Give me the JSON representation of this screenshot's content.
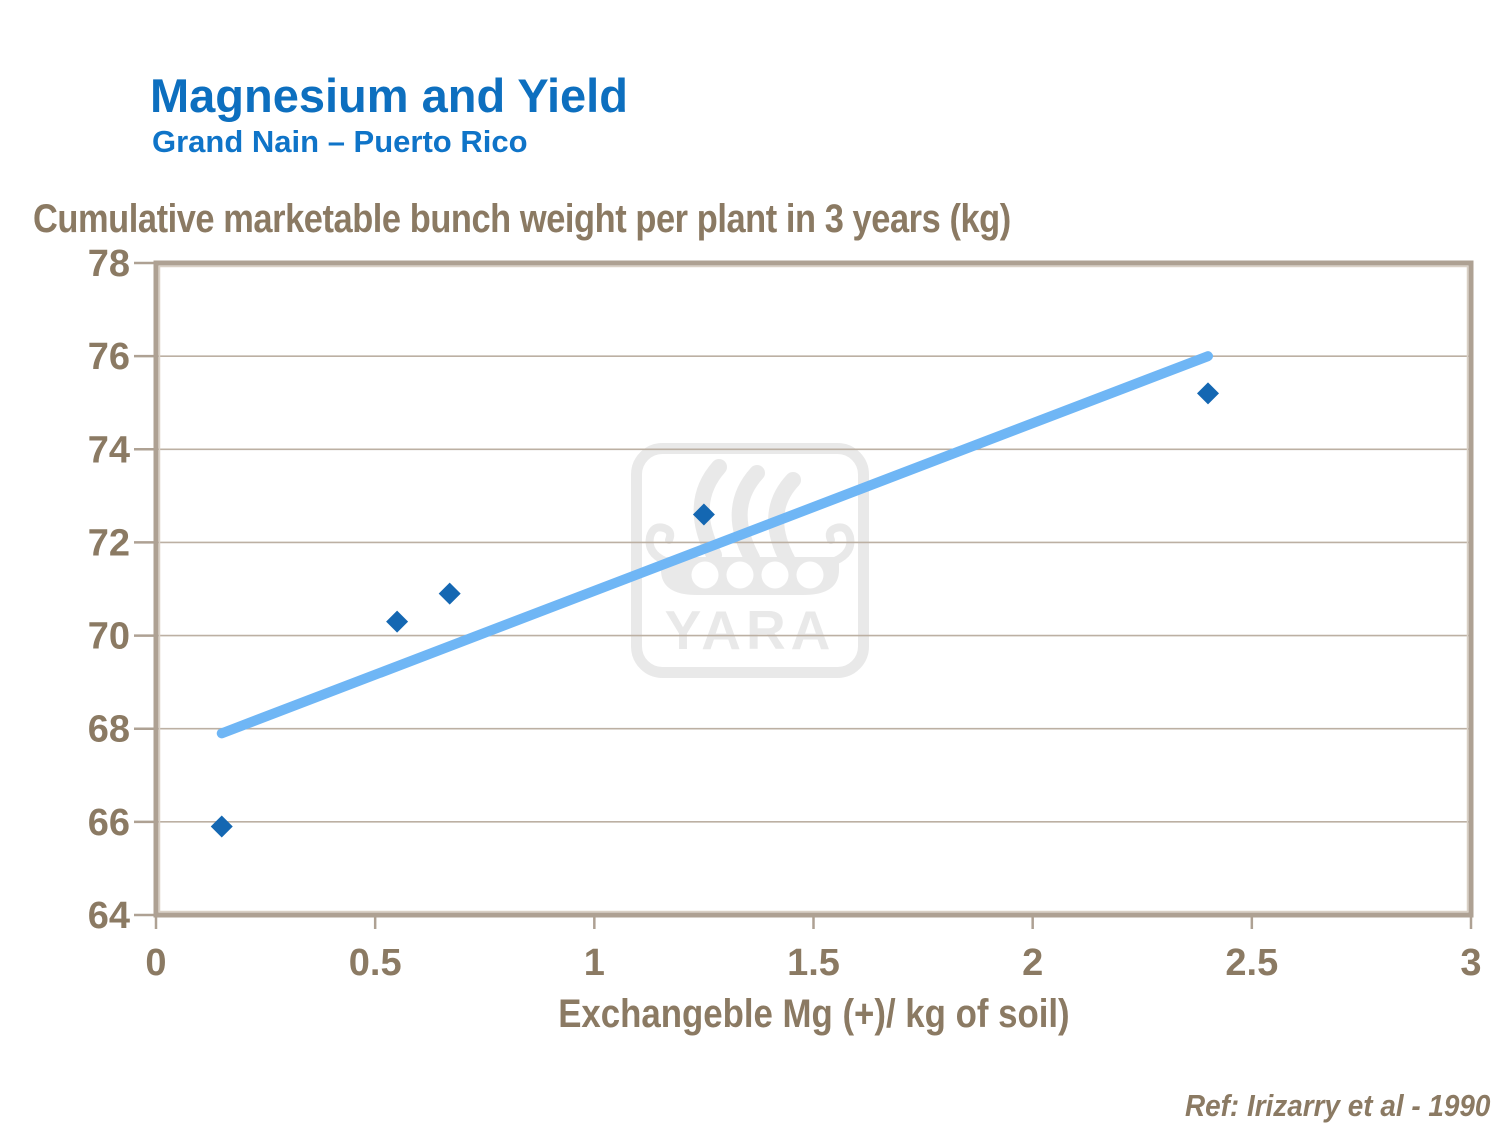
{
  "slide": {
    "title": "Magnesium and Yield",
    "subtitle": "Grand Nain – Puerto Rico",
    "reference": "Ref: Irizarry et al - 1990"
  },
  "watermark": {
    "brand": "YARA",
    "icon": "yara-viking-ship-logo",
    "color": "#E9E9E9"
  },
  "chart_data": {
    "type": "scatter",
    "title": "Cumulative marketable bunch weight per plant in 3 years (kg)",
    "xlabel": "Exchangeble Mg (+)/ kg of soil)",
    "ylabel": "",
    "xlim": [
      0,
      3
    ],
    "ylim": [
      64,
      78
    ],
    "x_ticks": [
      0,
      0.5,
      1,
      1.5,
      2,
      2.5,
      3
    ],
    "x_tick_labels": [
      "0",
      "0.5",
      "1",
      "1.5",
      "2",
      "2.5",
      "3"
    ],
    "y_ticks": [
      64,
      66,
      68,
      70,
      72,
      74,
      76,
      78
    ],
    "y_tick_labels": [
      "64",
      "66",
      "68",
      "70",
      "72",
      "74",
      "76",
      "78"
    ],
    "grid": "horizontal",
    "legend": "none",
    "series": [
      {
        "name": "observations",
        "type": "scatter",
        "marker": "diamond",
        "color": "#1467B2",
        "points": [
          {
            "x": 0.15,
            "y": 65.9
          },
          {
            "x": 0.55,
            "y": 70.3
          },
          {
            "x": 0.67,
            "y": 70.9
          },
          {
            "x": 1.25,
            "y": 72.6
          },
          {
            "x": 2.4,
            "y": 75.2
          }
        ]
      },
      {
        "name": "trend-line",
        "type": "line",
        "color": "#6FB6F5",
        "points": [
          {
            "x": 0.15,
            "y": 67.9
          },
          {
            "x": 2.4,
            "y": 76.0
          }
        ]
      }
    ],
    "style": {
      "frame_color": "#AEA193",
      "frame_inner_color": "#D9D0C5",
      "gridline_color": "#BCB0A3",
      "tick_color": "#AEA193",
      "label_color": "#8B7A63"
    }
  }
}
